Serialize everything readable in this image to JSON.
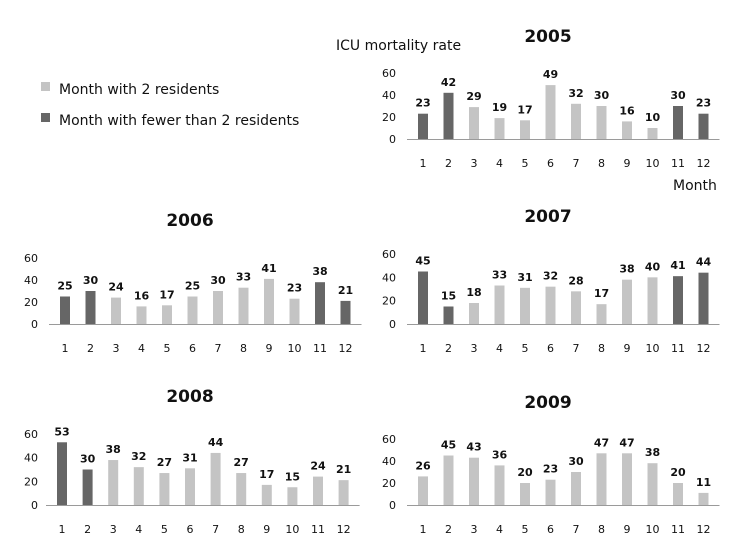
{
  "figure": {
    "ylabel": "ICU mortality rate",
    "xlabel": "Month",
    "legend": [
      {
        "label": "Month with 2 residents",
        "color": "#c4c4c4"
      },
      {
        "label": "Month with fewer than 2 residents",
        "color": "#666666"
      }
    ]
  },
  "chart_data": [
    {
      "type": "bar",
      "title": "2005",
      "categories": [
        "1",
        "2",
        "3",
        "4",
        "5",
        "6",
        "7",
        "8",
        "9",
        "10",
        "11",
        "12"
      ],
      "values": [
        23,
        42,
        29,
        19,
        17,
        49,
        32,
        30,
        16,
        10,
        30,
        23
      ],
      "fewer_than_2_residents": [
        true,
        true,
        false,
        false,
        false,
        false,
        false,
        false,
        false,
        false,
        true,
        true
      ],
      "ylim": [
        0,
        60
      ],
      "yticks": [
        0,
        20,
        40,
        60
      ]
    },
    {
      "type": "bar",
      "title": "2006",
      "categories": [
        "1",
        "2",
        "3",
        "4",
        "5",
        "6",
        "7",
        "8",
        "9",
        "10",
        "11",
        "12"
      ],
      "values": [
        25,
        30,
        24,
        16,
        17,
        25,
        30,
        33,
        41,
        23,
        38,
        21
      ],
      "fewer_than_2_residents": [
        true,
        true,
        false,
        false,
        false,
        false,
        false,
        false,
        false,
        false,
        true,
        true
      ],
      "ylim": [
        0,
        60
      ],
      "yticks": [
        0,
        20,
        40,
        60
      ]
    },
    {
      "type": "bar",
      "title": "2007",
      "categories": [
        "1",
        "2",
        "3",
        "4",
        "5",
        "6",
        "7",
        "8",
        "9",
        "10",
        "11",
        "12"
      ],
      "values": [
        45,
        15,
        18,
        33,
        31,
        32,
        28,
        17,
        38,
        40,
        41,
        44
      ],
      "fewer_than_2_residents": [
        true,
        true,
        false,
        false,
        false,
        false,
        false,
        false,
        false,
        false,
        true,
        true
      ],
      "ylim": [
        0,
        60
      ],
      "yticks": [
        0,
        20,
        40,
        60
      ]
    },
    {
      "type": "bar",
      "title": "2008",
      "categories": [
        "1",
        "2",
        "3",
        "4",
        "5",
        "6",
        "7",
        "8",
        "9",
        "10",
        "11",
        "12"
      ],
      "values": [
        53,
        30,
        38,
        32,
        27,
        31,
        44,
        27,
        17,
        15,
        24,
        21
      ],
      "fewer_than_2_residents": [
        true,
        true,
        false,
        false,
        false,
        false,
        false,
        false,
        false,
        false,
        false,
        false
      ],
      "ylim": [
        0,
        60
      ],
      "yticks": [
        0,
        20,
        40,
        60
      ]
    },
    {
      "type": "bar",
      "title": "2009",
      "categories": [
        "1",
        "2",
        "3",
        "4",
        "5",
        "6",
        "7",
        "8",
        "9",
        "10",
        "11",
        "12"
      ],
      "values": [
        26,
        45,
        43,
        36,
        20,
        23,
        30,
        47,
        47,
        38,
        20,
        11
      ],
      "fewer_than_2_residents": [
        false,
        false,
        false,
        false,
        false,
        false,
        false,
        false,
        false,
        false,
        false,
        false
      ],
      "ylim": [
        0,
        60
      ],
      "yticks": [
        0,
        20,
        40,
        60
      ]
    }
  ]
}
